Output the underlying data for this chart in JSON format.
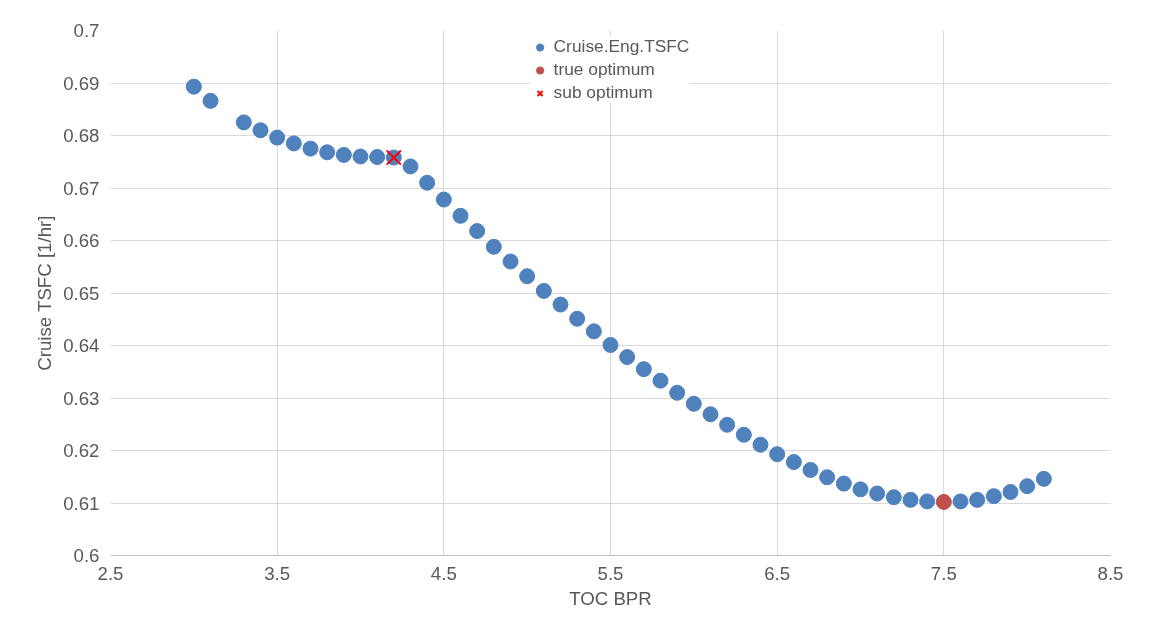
{
  "chart_data": {
    "type": "scatter",
    "xlabel": "TOC BPR",
    "ylabel": "Cruise TSFC [1/hr]",
    "xlim": [
      2.5,
      8.5
    ],
    "xticks": [
      2.5,
      3.5,
      4.5,
      5.5,
      6.5,
      7.5,
      8.5
    ],
    "ylim": [
      0.6,
      0.7
    ],
    "yticks": [
      0.6,
      0.61,
      0.62,
      0.63,
      0.64,
      0.65,
      0.66,
      0.67,
      0.68,
      0.69,
      0.7
    ],
    "grid": true,
    "legend": "top",
    "series": [
      {
        "name": "Cruise.Eng.TSFC",
        "color": "#4f81bd",
        "marker": "circle",
        "x": [
          3.0,
          3.1,
          3.3,
          3.4,
          3.5,
          3.6,
          3.7,
          3.8,
          3.9,
          4.0,
          4.1,
          4.2,
          4.3,
          4.4,
          4.5,
          4.6,
          4.7,
          4.8,
          4.9,
          5.0,
          5.1,
          5.2,
          5.3,
          5.4,
          5.5,
          5.6,
          5.7,
          5.8,
          5.9,
          6.0,
          6.1,
          6.2,
          6.3,
          6.4,
          6.5,
          6.6,
          6.7,
          6.8,
          6.9,
          7.0,
          7.1,
          7.2,
          7.3,
          7.4,
          7.6,
          7.7,
          7.8,
          7.9,
          8.0,
          8.1
        ],
        "values": [
          0.6893,
          0.6866,
          0.6825,
          0.681,
          0.6796,
          0.6785,
          0.6775,
          0.6768,
          0.6763,
          0.676,
          0.6759,
          0.6758,
          0.6741,
          0.671,
          0.6678,
          0.6647,
          0.6618,
          0.6588,
          0.656,
          0.6532,
          0.6504,
          0.6478,
          0.6451,
          0.6427,
          0.6401,
          0.6378,
          0.6355,
          0.6333,
          0.631,
          0.6289,
          0.6269,
          0.6249,
          0.623,
          0.6211,
          0.6193,
          0.6178,
          0.6163,
          0.6149,
          0.6137,
          0.6126,
          0.6118,
          0.6111,
          0.6106,
          0.6103,
          0.6103,
          0.6106,
          0.6113,
          0.6121,
          0.6132,
          0.6146
        ]
      },
      {
        "name": "true optimum",
        "color": "#c0504d",
        "marker": "circle",
        "x": [
          7.5
        ],
        "values": [
          0.6102
        ]
      },
      {
        "name": "sub optimum",
        "color": "#ff0000",
        "marker": "cross",
        "x": [
          4.2
        ],
        "values": [
          0.6758
        ]
      }
    ]
  }
}
